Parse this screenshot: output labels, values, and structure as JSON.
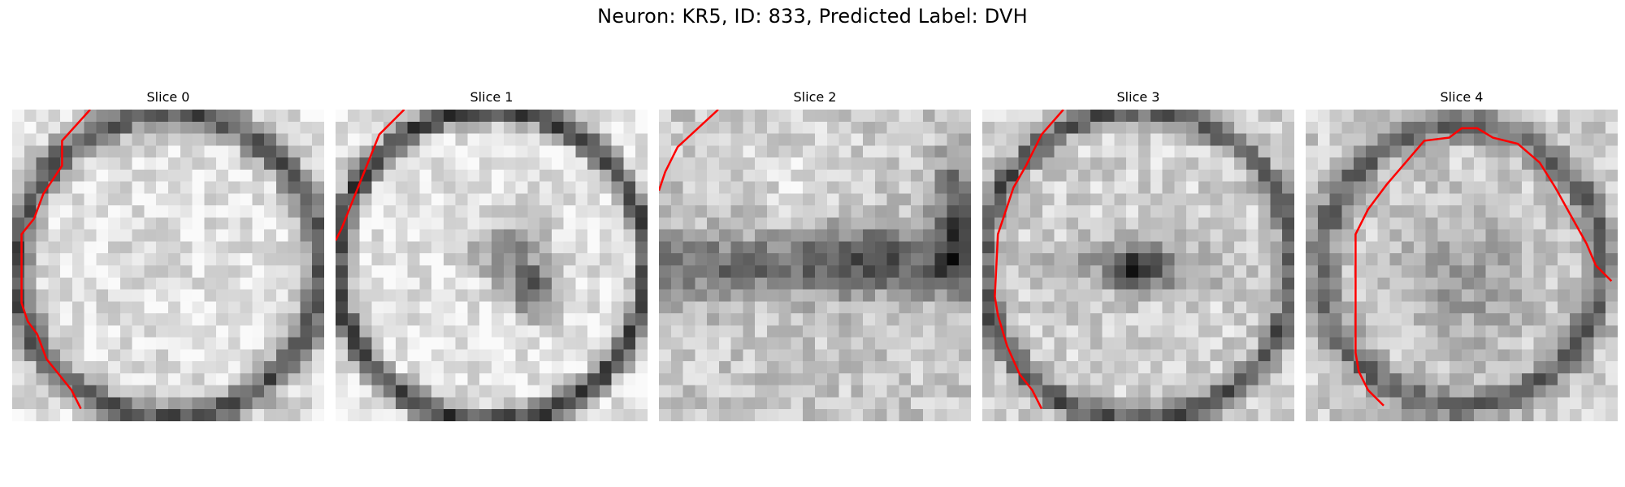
{
  "figure": {
    "title": "Neuron: KR5, ID: 833, Predicted Label: DVH"
  },
  "panels": [
    {
      "title": "Slice 0",
      "pattern": "bright-center",
      "contour": [
        [
          0.25,
          0.0
        ],
        [
          0.16,
          0.1
        ],
        [
          0.16,
          0.18
        ],
        [
          0.1,
          0.27
        ],
        [
          0.07,
          0.35
        ],
        [
          0.03,
          0.4
        ],
        [
          0.03,
          0.62
        ],
        [
          0.05,
          0.68
        ],
        [
          0.08,
          0.72
        ],
        [
          0.11,
          0.8
        ],
        [
          0.15,
          0.85
        ],
        [
          0.19,
          0.9
        ],
        [
          0.22,
          0.96
        ]
      ]
    },
    {
      "title": "Slice 1",
      "pattern": "ring-dark-core",
      "contour": [
        [
          0.22,
          0.0
        ],
        [
          0.14,
          0.08
        ],
        [
          0.1,
          0.18
        ],
        [
          0.06,
          0.28
        ],
        [
          0.02,
          0.38
        ],
        [
          0.0,
          0.42
        ]
      ]
    },
    {
      "title": "Slice 2",
      "pattern": "noisy-band",
      "contour": [
        [
          0.19,
          0.0
        ],
        [
          0.06,
          0.12
        ],
        [
          0.02,
          0.2
        ],
        [
          0.0,
          0.26
        ]
      ]
    },
    {
      "title": "Slice 3",
      "pattern": "ring-dark-center",
      "contour": [
        [
          0.26,
          0.0
        ],
        [
          0.19,
          0.08
        ],
        [
          0.14,
          0.18
        ],
        [
          0.1,
          0.25
        ],
        [
          0.07,
          0.34
        ],
        [
          0.05,
          0.4
        ],
        [
          0.04,
          0.6
        ],
        [
          0.05,
          0.66
        ],
        [
          0.08,
          0.76
        ],
        [
          0.12,
          0.85
        ],
        [
          0.16,
          0.9
        ],
        [
          0.19,
          0.96
        ]
      ]
    },
    {
      "title": "Slice 4",
      "pattern": "large-ring",
      "contour": [
        [
          0.25,
          0.95
        ],
        [
          0.2,
          0.9
        ],
        [
          0.17,
          0.84
        ],
        [
          0.16,
          0.78
        ],
        [
          0.16,
          0.4
        ],
        [
          0.2,
          0.32
        ],
        [
          0.26,
          0.24
        ],
        [
          0.32,
          0.17
        ],
        [
          0.38,
          0.1
        ],
        [
          0.46,
          0.09
        ],
        [
          0.5,
          0.06
        ],
        [
          0.55,
          0.06
        ],
        [
          0.6,
          0.09
        ],
        [
          0.68,
          0.11
        ],
        [
          0.75,
          0.17
        ],
        [
          0.8,
          0.25
        ],
        [
          0.85,
          0.34
        ],
        [
          0.9,
          0.43
        ],
        [
          0.93,
          0.5
        ],
        [
          0.98,
          0.55
        ]
      ]
    }
  ]
}
